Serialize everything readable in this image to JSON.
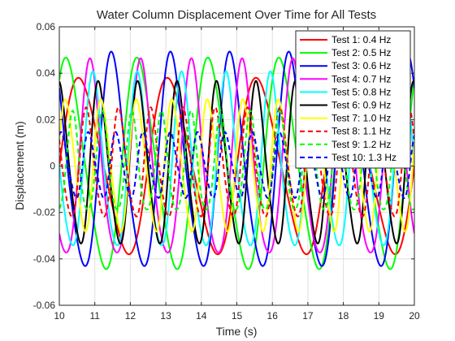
{
  "chart_data": {
    "type": "line",
    "title": "Water Column Displacement Over Time for All Tests",
    "xlabel": "Time (s)",
    "ylabel": "Displacement (m)",
    "xlim": [
      10,
      20
    ],
    "ylim": [
      -0.06,
      0.06
    ],
    "xticks": [
      10,
      11,
      12,
      13,
      14,
      15,
      16,
      17,
      18,
      19,
      20
    ],
    "xtick_labels": [
      "10",
      "11",
      "12",
      "13",
      "14",
      "15",
      "16",
      "17",
      "18",
      "19",
      "20"
    ],
    "yticks": [
      -0.06,
      -0.04,
      -0.02,
      0,
      0.02,
      0.04,
      0.06
    ],
    "ytick_labels": [
      "-0.06",
      "-0.04",
      "-0.02",
      "0",
      "0.02",
      "0.04",
      "0.06"
    ],
    "grid": true,
    "legend_position": "top-right",
    "series": [
      {
        "name": "Test 1: 0.4 Hz",
        "color": "#ff0000",
        "dash": "solid",
        "freq_hz": 0.4,
        "amplitude": 0.04,
        "phase": 0.0,
        "offset": 0.0
      },
      {
        "name": "Test 2: 0.5 Hz",
        "color": "#00ff00",
        "dash": "solid",
        "freq_hz": 0.5,
        "amplitude": 0.048,
        "phase": 0.8,
        "offset": 0.0
      },
      {
        "name": "Test 3: 0.6 Hz",
        "color": "#0000ff",
        "dash": "solid",
        "freq_hz": 0.6,
        "amplitude": 0.049,
        "phase": 2.2,
        "offset": 0.0
      },
      {
        "name": "Test 4: 0.7 Hz",
        "color": "#ff00ff",
        "dash": "solid",
        "freq_hz": 0.7,
        "amplitude": 0.045,
        "phase": 4.0,
        "offset": 0.0
      },
      {
        "name": "Test 5: 0.8 Hz",
        "color": "#00ffff",
        "dash": "solid",
        "freq_hz": 0.8,
        "amplitude": 0.04,
        "phase": 3.0,
        "offset": 0.0
      },
      {
        "name": "Test 6: 0.9 Hz",
        "color": "#000000",
        "dash": "solid",
        "freq_hz": 0.9,
        "amplitude": 0.037,
        "phase": 1.5,
        "offset": 0.0
      },
      {
        "name": "Test 7: 1.0 Hz",
        "color": "#ffff00",
        "dash": "solid",
        "freq_hz": 1.0,
        "amplitude": 0.03,
        "phase": 0.3,
        "offset": 0.0
      },
      {
        "name": "Test 8: 1.1 Hz",
        "color": "#ff0000",
        "dash": "dashed",
        "freq_hz": 1.1,
        "amplitude": 0.025,
        "phase": 2.5,
        "offset": 0.0
      },
      {
        "name": "Test 9: 1.2 Hz",
        "color": "#00ff00",
        "dash": "dashed",
        "freq_hz": 1.2,
        "amplitude": 0.023,
        "phase": 5.0,
        "offset": 0.0
      },
      {
        "name": "Test 10: 1.3 Hz",
        "color": "#0000ff",
        "dash": "dashed",
        "freq_hz": 1.3,
        "amplitude": 0.015,
        "phase": 1.0,
        "offset": 0.0
      }
    ]
  }
}
